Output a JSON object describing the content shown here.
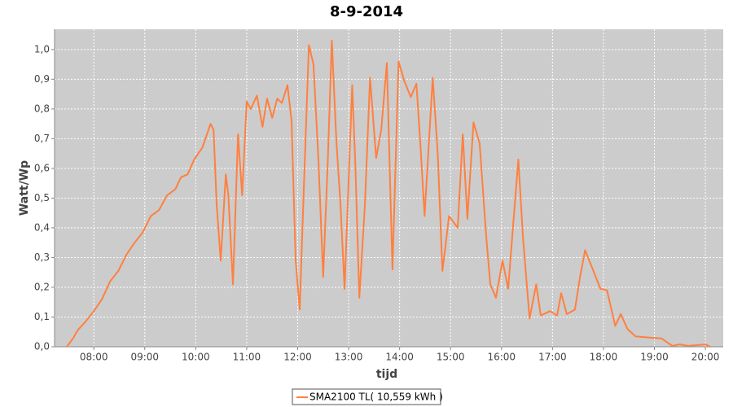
{
  "chart_data": {
    "type": "line",
    "title": "8-9-2014",
    "xlabel": "tijd",
    "ylabel": "Watt/Wp",
    "x": [
      7.47,
      7.6,
      7.68,
      7.84,
      8.0,
      8.16,
      8.32,
      8.48,
      8.64,
      8.8,
      8.96,
      9.12,
      9.28,
      9.44,
      9.6,
      9.71,
      9.84,
      9.97,
      10.13,
      10.29,
      10.35,
      10.41,
      10.49,
      10.59,
      10.64,
      10.73,
      10.83,
      10.91,
      11.0,
      11.08,
      11.2,
      11.31,
      11.4,
      11.5,
      11.6,
      11.69,
      11.8,
      11.88,
      11.96,
      12.04,
      12.11,
      12.22,
      12.31,
      12.41,
      12.5,
      12.59,
      12.67,
      12.76,
      12.84,
      12.92,
      13.07,
      13.13,
      13.21,
      13.32,
      13.42,
      13.54,
      13.64,
      13.75,
      13.86,
      13.98,
      14.09,
      14.22,
      14.33,
      14.41,
      14.49,
      14.65,
      14.75,
      14.84,
      14.97,
      15.14,
      15.24,
      15.33,
      15.45,
      15.57,
      15.7,
      15.78,
      15.89,
      16.02,
      16.13,
      16.21,
      16.33,
      16.42,
      16.55,
      16.68,
      16.77,
      16.95,
      17.09,
      17.17,
      17.28,
      17.44,
      17.54,
      17.64,
      17.78,
      17.94,
      18.07,
      18.23,
      18.34,
      18.47,
      18.63,
      18.95,
      19.14,
      19.35,
      19.5,
      19.66,
      20.0,
      20.1
    ],
    "series": [
      {
        "name": "SMA2100 TL( 10,559 kWh )",
        "color": "#ff8040",
        "values": [
          0,
          0.03,
          0.055,
          0.085,
          0.12,
          0.16,
          0.22,
          0.255,
          0.31,
          0.35,
          0.385,
          0.44,
          0.46,
          0.51,
          0.53,
          0.57,
          0.58,
          0.63,
          0.67,
          0.75,
          0.73,
          0.48,
          0.29,
          0.58,
          0.51,
          0.21,
          0.715,
          0.51,
          0.825,
          0.8,
          0.845,
          0.74,
          0.835,
          0.77,
          0.835,
          0.82,
          0.88,
          0.76,
          0.29,
          0.125,
          0.48,
          1.015,
          0.95,
          0.62,
          0.235,
          0.62,
          1.03,
          0.69,
          0.48,
          0.195,
          0.88,
          0.62,
          0.165,
          0.48,
          0.905,
          0.635,
          0.73,
          0.955,
          0.26,
          0.96,
          0.895,
          0.84,
          0.885,
          0.675,
          0.44,
          0.905,
          0.645,
          0.255,
          0.44,
          0.4,
          0.715,
          0.43,
          0.755,
          0.685,
          0.37,
          0.21,
          0.165,
          0.29,
          0.195,
          0.37,
          0.63,
          0.37,
          0.095,
          0.21,
          0.105,
          0.12,
          0.105,
          0.18,
          0.11,
          0.125,
          0.235,
          0.325,
          0.265,
          0.195,
          0.19,
          0.07,
          0.11,
          0.06,
          0.035,
          0.03,
          0.028,
          0.003,
          0.008,
          0.003,
          0.008,
          0
        ]
      }
    ],
    "xlim": [
      7.23,
      20.35
    ],
    "xticks": [
      {
        "value": 8,
        "label": "08:00"
      },
      {
        "value": 9,
        "label": "09:00"
      },
      {
        "value": 10,
        "label": "10:00"
      },
      {
        "value": 11,
        "label": "11:00"
      },
      {
        "value": 12,
        "label": "12:00"
      },
      {
        "value": 13,
        "label": "13:00"
      },
      {
        "value": 14,
        "label": "14:00"
      },
      {
        "value": 15,
        "label": "15:00"
      },
      {
        "value": 16,
        "label": "16:00"
      },
      {
        "value": 17,
        "label": "17:00"
      },
      {
        "value": 18,
        "label": "18:00"
      },
      {
        "value": 19,
        "label": "19:00"
      },
      {
        "value": 20,
        "label": "20:00"
      }
    ],
    "ylim": [
      0,
      1.068
    ],
    "yticks": [
      {
        "value": 0,
        "label": "0,0"
      },
      {
        "value": 0.1,
        "label": "0,1"
      },
      {
        "value": 0.2,
        "label": "0,2"
      },
      {
        "value": 0.3,
        "label": "0,3"
      },
      {
        "value": 0.4,
        "label": "0,4"
      },
      {
        "value": 0.5,
        "label": "0,5"
      },
      {
        "value": 0.6,
        "label": "0,6"
      },
      {
        "value": 0.7,
        "label": "0,7"
      },
      {
        "value": 0.8,
        "label": "0,8"
      },
      {
        "value": 0.9,
        "label": "0,9"
      },
      {
        "value": 1,
        "label": "1,0"
      }
    ],
    "grid": true,
    "legend": "bottom"
  }
}
